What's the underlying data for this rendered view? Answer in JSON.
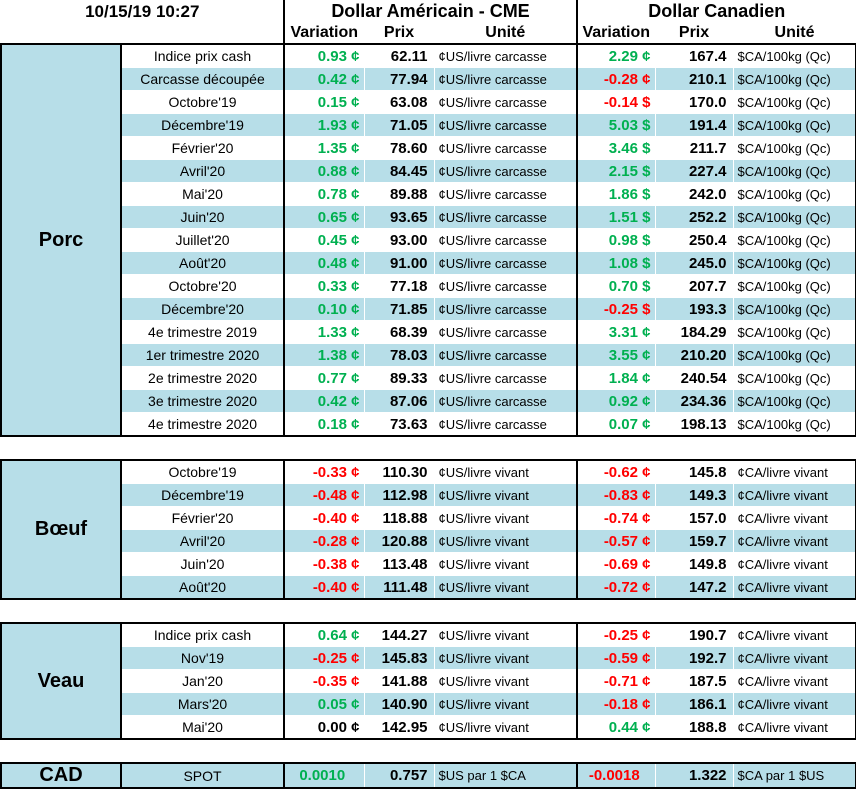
{
  "header": {
    "timestamp": "10/15/19 10:27",
    "usd_title": "Dollar Américain - CME",
    "cad_title": "Dollar Canadien",
    "col_variation": "Variation",
    "col_prix": "Prix",
    "col_unite": "Unité"
  },
  "colors": {
    "positive": "#00b050",
    "negative": "#ff0000",
    "band": "#b7dee8"
  },
  "groups": [
    {
      "name": "Porc",
      "rows": [
        {
          "label": "Indice prix cash",
          "usd_var": "0.93 ¢",
          "usd_dir": "up",
          "usd_prix": "62.11",
          "usd_unit": "¢US/livre carcasse",
          "cad_var": "2.29 ¢",
          "cad_dir": "up",
          "cad_prix": "167.4",
          "cad_unit": "$CA/100kg (Qc)"
        },
        {
          "label": "Carcasse découpée",
          "usd_var": "0.42 ¢",
          "usd_dir": "up",
          "usd_prix": "77.94",
          "usd_unit": "¢US/livre carcasse",
          "cad_var": "-0.28 ¢",
          "cad_dir": "dn",
          "cad_prix": "210.1",
          "cad_unit": "$CA/100kg (Qc)"
        },
        {
          "label": "Octobre'19",
          "usd_var": "0.15 ¢",
          "usd_dir": "up",
          "usd_prix": "63.08",
          "usd_unit": "¢US/livre carcasse",
          "cad_var": "-0.14 $",
          "cad_dir": "dn",
          "cad_prix": "170.0",
          "cad_unit": "$CA/100kg (Qc)"
        },
        {
          "label": "Décembre'19",
          "usd_var": "1.93 ¢",
          "usd_dir": "up",
          "usd_prix": "71.05",
          "usd_unit": "¢US/livre carcasse",
          "cad_var": "5.03 $",
          "cad_dir": "up",
          "cad_prix": "191.4",
          "cad_unit": "$CA/100kg (Qc)"
        },
        {
          "label": "Février'20",
          "usd_var": "1.35 ¢",
          "usd_dir": "up",
          "usd_prix": "78.60",
          "usd_unit": "¢US/livre carcasse",
          "cad_var": "3.46 $",
          "cad_dir": "up",
          "cad_prix": "211.7",
          "cad_unit": "$CA/100kg (Qc)"
        },
        {
          "label": "Avril'20",
          "usd_var": "0.88 ¢",
          "usd_dir": "up",
          "usd_prix": "84.45",
          "usd_unit": "¢US/livre carcasse",
          "cad_var": "2.15 $",
          "cad_dir": "up",
          "cad_prix": "227.4",
          "cad_unit": "$CA/100kg (Qc)"
        },
        {
          "label": "Mai'20",
          "usd_var": "0.78 ¢",
          "usd_dir": "up",
          "usd_prix": "89.88",
          "usd_unit": "¢US/livre carcasse",
          "cad_var": "1.86 $",
          "cad_dir": "up",
          "cad_prix": "242.0",
          "cad_unit": "$CA/100kg (Qc)"
        },
        {
          "label": "Juin'20",
          "usd_var": "0.65 ¢",
          "usd_dir": "up",
          "usd_prix": "93.65",
          "usd_unit": "¢US/livre carcasse",
          "cad_var": "1.51 $",
          "cad_dir": "up",
          "cad_prix": "252.2",
          "cad_unit": "$CA/100kg (Qc)"
        },
        {
          "label": "Juillet'20",
          "usd_var": "0.45 ¢",
          "usd_dir": "up",
          "usd_prix": "93.00",
          "usd_unit": "¢US/livre carcasse",
          "cad_var": "0.98 $",
          "cad_dir": "up",
          "cad_prix": "250.4",
          "cad_unit": "$CA/100kg (Qc)"
        },
        {
          "label": "Août'20",
          "usd_var": "0.48 ¢",
          "usd_dir": "up",
          "usd_prix": "91.00",
          "usd_unit": "¢US/livre carcasse",
          "cad_var": "1.08 $",
          "cad_dir": "up",
          "cad_prix": "245.0",
          "cad_unit": "$CA/100kg (Qc)"
        },
        {
          "label": "Octobre'20",
          "usd_var": "0.33 ¢",
          "usd_dir": "up",
          "usd_prix": "77.18",
          "usd_unit": "¢US/livre carcasse",
          "cad_var": "0.70 $",
          "cad_dir": "up",
          "cad_prix": "207.7",
          "cad_unit": "$CA/100kg (Qc)"
        },
        {
          "label": "Décembre'20",
          "usd_var": "0.10 ¢",
          "usd_dir": "up",
          "usd_prix": "71.85",
          "usd_unit": "¢US/livre carcasse",
          "cad_var": "-0.25 $",
          "cad_dir": "dn",
          "cad_prix": "193.3",
          "cad_unit": "$CA/100kg (Qc)"
        },
        {
          "label": "4e trimestre 2019",
          "usd_var": "1.33 ¢",
          "usd_dir": "up",
          "usd_prix": "68.39",
          "usd_unit": "¢US/livre carcasse",
          "cad_var": "3.31 ¢",
          "cad_dir": "up",
          "cad_prix": "184.29",
          "cad_unit": "$CA/100kg (Qc)"
        },
        {
          "label": "1er trimestre 2020",
          "usd_var": "1.38 ¢",
          "usd_dir": "up",
          "usd_prix": "78.03",
          "usd_unit": "¢US/livre carcasse",
          "cad_var": "3.55 ¢",
          "cad_dir": "up",
          "cad_prix": "210.20",
          "cad_unit": "$CA/100kg (Qc)"
        },
        {
          "label": "2e trimestre 2020",
          "usd_var": "0.77 ¢",
          "usd_dir": "up",
          "usd_prix": "89.33",
          "usd_unit": "¢US/livre carcasse",
          "cad_var": "1.84 ¢",
          "cad_dir": "up",
          "cad_prix": "240.54",
          "cad_unit": "$CA/100kg (Qc)"
        },
        {
          "label": "3e trimestre 2020",
          "usd_var": "0.42 ¢",
          "usd_dir": "up",
          "usd_prix": "87.06",
          "usd_unit": "¢US/livre carcasse",
          "cad_var": "0.92 ¢",
          "cad_dir": "up",
          "cad_prix": "234.36",
          "cad_unit": "$CA/100kg (Qc)"
        },
        {
          "label": "4e trimestre 2020",
          "usd_var": "0.18 ¢",
          "usd_dir": "up",
          "usd_prix": "73.63",
          "usd_unit": "¢US/livre carcasse",
          "cad_var": "0.07 ¢",
          "cad_dir": "up",
          "cad_prix": "198.13",
          "cad_unit": "$CA/100kg (Qc)"
        }
      ]
    },
    {
      "name": "Bœuf",
      "rows": [
        {
          "label": "Octobre'19",
          "usd_var": "-0.33 ¢",
          "usd_dir": "dn",
          "usd_prix": "110.30",
          "usd_unit": "¢US/livre vivant",
          "cad_var": "-0.62 ¢",
          "cad_dir": "dn",
          "cad_prix": "145.8",
          "cad_unit": "¢CA/livre vivant"
        },
        {
          "label": "Décembre'19",
          "usd_var": "-0.48 ¢",
          "usd_dir": "dn",
          "usd_prix": "112.98",
          "usd_unit": "¢US/livre vivant",
          "cad_var": "-0.83 ¢",
          "cad_dir": "dn",
          "cad_prix": "149.3",
          "cad_unit": "¢CA/livre vivant"
        },
        {
          "label": "Février'20",
          "usd_var": "-0.40 ¢",
          "usd_dir": "dn",
          "usd_prix": "118.88",
          "usd_unit": "¢US/livre vivant",
          "cad_var": "-0.74 ¢",
          "cad_dir": "dn",
          "cad_prix": "157.0",
          "cad_unit": "¢CA/livre vivant"
        },
        {
          "label": "Avril'20",
          "usd_var": "-0.28 ¢",
          "usd_dir": "dn",
          "usd_prix": "120.88",
          "usd_unit": "¢US/livre vivant",
          "cad_var": "-0.57 ¢",
          "cad_dir": "dn",
          "cad_prix": "159.7",
          "cad_unit": "¢CA/livre vivant"
        },
        {
          "label": "Juin'20",
          "usd_var": "-0.38 ¢",
          "usd_dir": "dn",
          "usd_prix": "113.48",
          "usd_unit": "¢US/livre vivant",
          "cad_var": "-0.69 ¢",
          "cad_dir": "dn",
          "cad_prix": "149.8",
          "cad_unit": "¢CA/livre vivant"
        },
        {
          "label": "Août'20",
          "usd_var": "-0.40 ¢",
          "usd_dir": "dn",
          "usd_prix": "111.48",
          "usd_unit": "¢US/livre vivant",
          "cad_var": "-0.72 ¢",
          "cad_dir": "dn",
          "cad_prix": "147.2",
          "cad_unit": "¢CA/livre vivant"
        }
      ]
    },
    {
      "name": "Veau",
      "rows": [
        {
          "label": "Indice prix cash",
          "usd_var": "0.64 ¢",
          "usd_dir": "up",
          "usd_prix": "144.27",
          "usd_unit": "¢US/livre vivant",
          "cad_var": "-0.25 ¢",
          "cad_dir": "dn",
          "cad_prix": "190.7",
          "cad_unit": "¢CA/livre vivant"
        },
        {
          "label": "Nov'19",
          "usd_var": "-0.25 ¢",
          "usd_dir": "dn",
          "usd_prix": "145.83",
          "usd_unit": "¢US/livre vivant",
          "cad_var": "-0.59 ¢",
          "cad_dir": "dn",
          "cad_prix": "192.7",
          "cad_unit": "¢CA/livre vivant"
        },
        {
          "label": "Jan'20",
          "usd_var": "-0.35 ¢",
          "usd_dir": "dn",
          "usd_prix": "141.88",
          "usd_unit": "¢US/livre vivant",
          "cad_var": "-0.71 ¢",
          "cad_dir": "dn",
          "cad_prix": "187.5",
          "cad_unit": "¢CA/livre vivant"
        },
        {
          "label": "Mars'20",
          "usd_var": "0.05 ¢",
          "usd_dir": "up",
          "usd_prix": "140.90",
          "usd_unit": "¢US/livre vivant",
          "cad_var": "-0.18 ¢",
          "cad_dir": "dn",
          "cad_prix": "186.1",
          "cad_unit": "¢CA/livre vivant"
        },
        {
          "label": "Mai'20",
          "usd_var": "0.00 ¢",
          "usd_dir": "zero",
          "usd_prix": "142.95",
          "usd_unit": "¢US/livre vivant",
          "cad_var": "0.44 ¢",
          "cad_dir": "up",
          "cad_prix": "188.8",
          "cad_unit": "¢CA/livre vivant"
        }
      ]
    }
  ],
  "cad": {
    "name": "CAD",
    "label": "SPOT",
    "usd_var": "0.0010",
    "usd_dir": "up",
    "usd_prix": "0.757",
    "usd_unit": "$US par 1 $CA",
    "cad_var": "-0.0018",
    "cad_dir": "dn",
    "cad_prix": "1.322",
    "cad_unit": "$CA par 1 $US"
  }
}
